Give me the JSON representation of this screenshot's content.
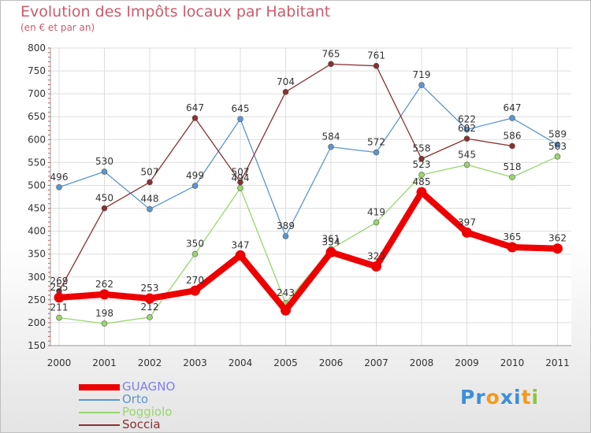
{
  "chart_data": {
    "type": "line",
    "title": "Evolution des Impôts locaux par Habitant",
    "subtitle": "(en € et par an)",
    "categories": [
      "2000",
      "2001",
      "2002",
      "2003",
      "2004",
      "2005",
      "2006",
      "2007",
      "2008",
      "2009",
      "2010",
      "2011"
    ],
    "ylim": [
      150,
      800
    ],
    "yticks": [
      150,
      200,
      250,
      300,
      350,
      400,
      450,
      500,
      550,
      600,
      650,
      700,
      750,
      800
    ],
    "grid": true,
    "legend_position": "bottom-left",
    "series": [
      {
        "name": "GUAGNO",
        "color": "#ee0000",
        "legend_color": "#7e7ef0",
        "values": [
          255,
          262,
          253,
          270,
          347,
          227,
          354,
          323,
          485,
          397,
          365,
          362
        ],
        "labels": [
          "255",
          "262",
          "253",
          "270",
          "347",
          "",
          "354",
          "323",
          "485",
          "397",
          "365",
          "362"
        ]
      },
      {
        "name": "Orto",
        "color": "#5a96d2",
        "legend_color": "#5a96d2",
        "values": [
          496,
          530,
          448,
          499,
          645,
          389,
          584,
          572,
          719,
          622,
          647,
          589
        ],
        "labels": [
          "496",
          "530",
          "448",
          "499",
          "645",
          "389",
          "584",
          "572",
          "719",
          "622",
          "647",
          "589"
        ]
      },
      {
        "name": "Poggiolo",
        "color": "#98d66c",
        "legend_color": "#98d66c",
        "values": [
          211,
          198,
          212,
          350,
          494,
          243,
          361,
          419,
          523,
          545,
          518,
          563
        ],
        "labels": [
          "211",
          "198",
          "212",
          "350",
          "494",
          "243",
          "361",
          "419",
          "523",
          "545",
          "518",
          "563"
        ]
      },
      {
        "name": "Soccia",
        "color": "#8a3030",
        "legend_color": "#8a3030",
        "values": [
          269,
          450,
          507,
          647,
          507,
          704,
          765,
          761,
          558,
          602,
          586,
          null
        ],
        "labels": [
          "269",
          "450",
          "507",
          "647",
          "507",
          "704",
          "765",
          "761",
          "558",
          "602",
          "586",
          ""
        ]
      }
    ]
  },
  "logo": {
    "letters": [
      "P",
      "r",
      "o",
      "x",
      "i",
      "t",
      "i"
    ],
    "colors": [
      "#3d8fd8",
      "#3d8fd8",
      "#f29a1b",
      "#3d8fd8",
      "#3d8fd8",
      "#f29a1b",
      "#8ac63f"
    ]
  }
}
